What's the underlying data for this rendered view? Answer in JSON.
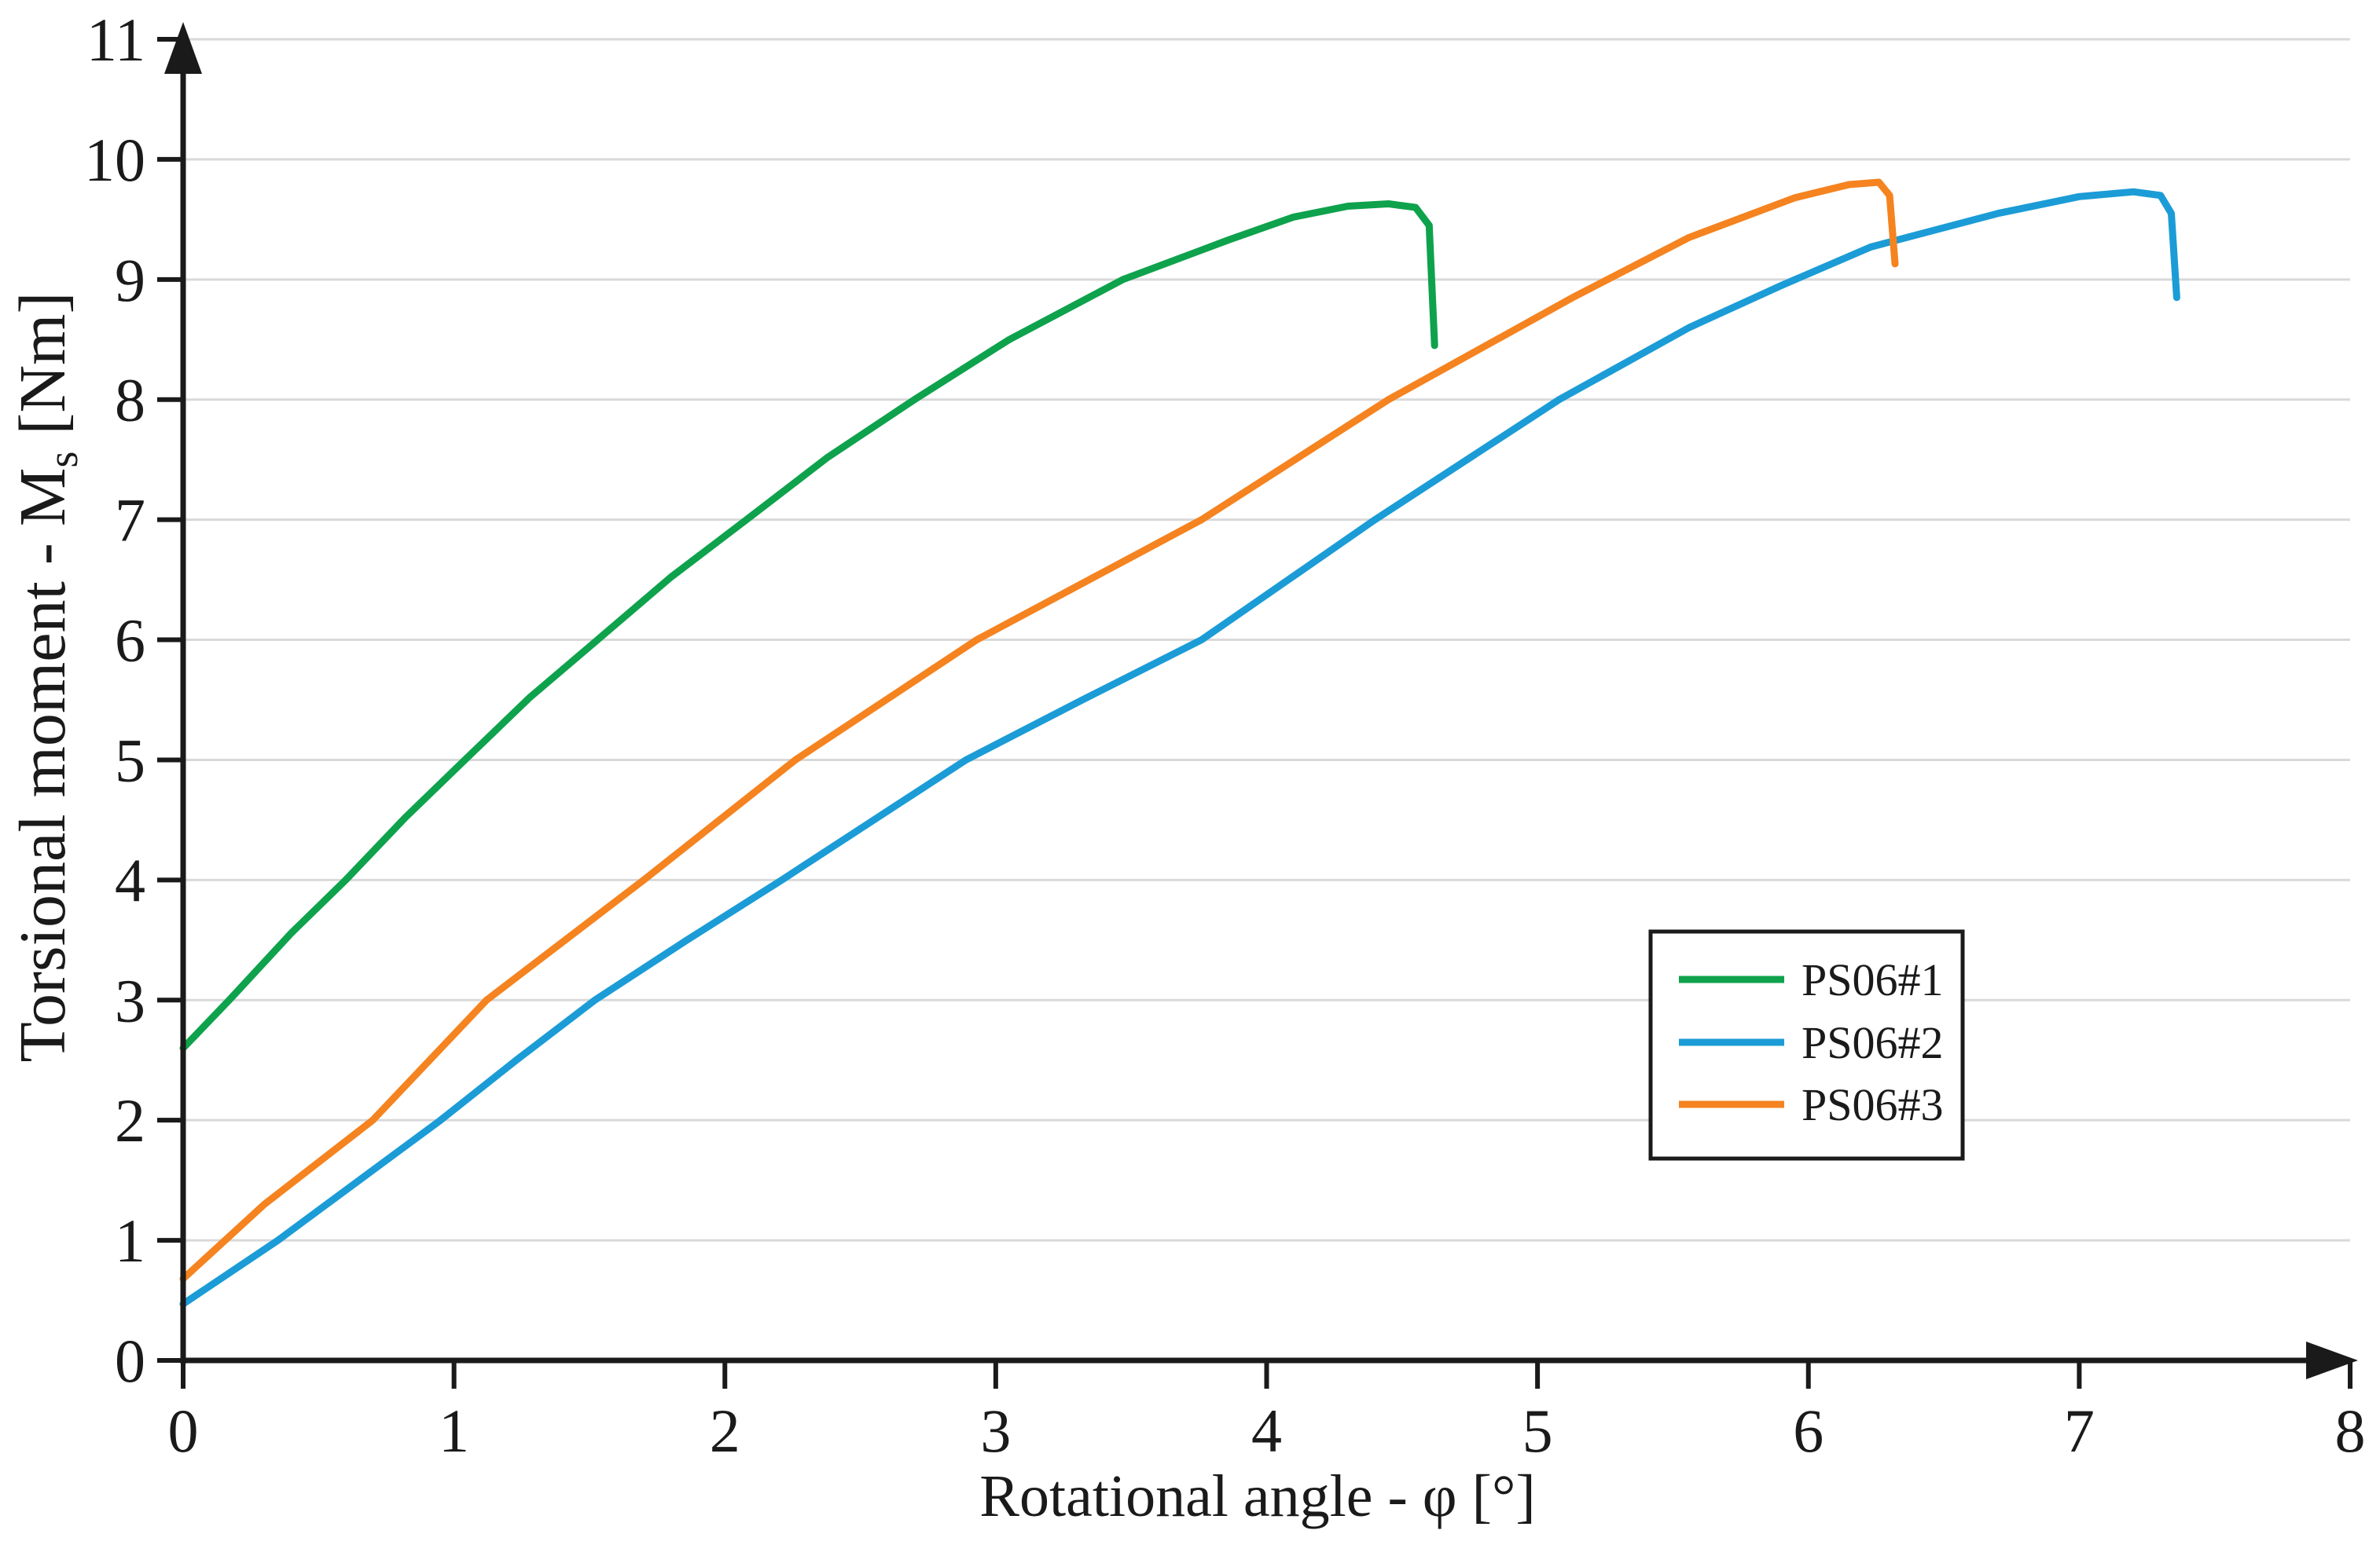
{
  "chart_data": {
    "type": "line",
    "title": "",
    "xlabel": "Rotational angle - φ [°]",
    "ylabel": "Torsional moment - Ms [Nm]",
    "ylabel_parts": {
      "main": "Torsional moment - M",
      "sub": "s",
      "unit": " [Nm]"
    },
    "xlim": [
      0,
      8
    ],
    "ylim": [
      0,
      11
    ],
    "x_ticks": [
      "0",
      "1",
      "2",
      "3",
      "4",
      "5",
      "6",
      "7",
      "8"
    ],
    "y_ticks": [
      "0",
      "1",
      "2",
      "3",
      "4",
      "5",
      "6",
      "7",
      "8",
      "9",
      "10",
      "11"
    ],
    "grid": true,
    "grid_color": "#d9d9d9",
    "axis_color": "#1a1a1a",
    "background_color": "#ffffff",
    "legend_position": "inside lower right",
    "series": [
      {
        "name": "PS06#1",
        "color": "#0ea24c",
        "points": [
          [
            0,
            2.6
          ],
          [
            0.17,
            3
          ],
          [
            0.4,
            3.56
          ],
          [
            0.6,
            4
          ],
          [
            0.82,
            4.52
          ],
          [
            1.04,
            5
          ],
          [
            1.28,
            5.52
          ],
          [
            1.53,
            6
          ],
          [
            1.8,
            6.52
          ],
          [
            2.08,
            7
          ],
          [
            2.38,
            7.52
          ],
          [
            2.7,
            8
          ],
          [
            3.05,
            8.5
          ],
          [
            3.47,
            9
          ],
          [
            3.86,
            9.33
          ],
          [
            4.1,
            9.52
          ],
          [
            4.3,
            9.61
          ],
          [
            4.45,
            9.63
          ],
          [
            4.55,
            9.6
          ],
          [
            4.6,
            9.45
          ],
          [
            4.62,
            8.45
          ]
        ]
      },
      {
        "name": "PS06#2",
        "color": "#1b9cd6",
        "points": [
          [
            0,
            0.47
          ],
          [
            0.35,
            1
          ],
          [
            0.65,
            1.5
          ],
          [
            0.95,
            2
          ],
          [
            1.23,
            2.5
          ],
          [
            1.52,
            3
          ],
          [
            1.86,
            3.5
          ],
          [
            2.21,
            4
          ],
          [
            2.55,
            4.5
          ],
          [
            2.89,
            5
          ],
          [
            3.32,
            5.5
          ],
          [
            3.76,
            6
          ],
          [
            4.08,
            6.5
          ],
          [
            4.4,
            7
          ],
          [
            4.74,
            7.5
          ],
          [
            5.08,
            8
          ],
          [
            5.56,
            8.6
          ],
          [
            5.9,
            8.95
          ],
          [
            6.23,
            9.27
          ],
          [
            6.7,
            9.55
          ],
          [
            7,
            9.69
          ],
          [
            7.2,
            9.73
          ],
          [
            7.3,
            9.7
          ],
          [
            7.34,
            9.55
          ],
          [
            7.36,
            8.85
          ]
        ]
      },
      {
        "name": "PS06#3",
        "color": "#f5831f",
        "points": [
          [
            0,
            0.68
          ],
          [
            0.3,
            1.3
          ],
          [
            0.7,
            2
          ],
          [
            1.12,
            3
          ],
          [
            1.7,
            4
          ],
          [
            2.26,
            5
          ],
          [
            2.93,
            6
          ],
          [
            3.76,
            7
          ],
          [
            4.45,
            8
          ],
          [
            5.13,
            8.85
          ],
          [
            5.56,
            9.35
          ],
          [
            5.95,
            9.68
          ],
          [
            6.15,
            9.79
          ],
          [
            6.26,
            9.81
          ],
          [
            6.3,
            9.7
          ],
          [
            6.32,
            9.13
          ]
        ]
      }
    ]
  }
}
